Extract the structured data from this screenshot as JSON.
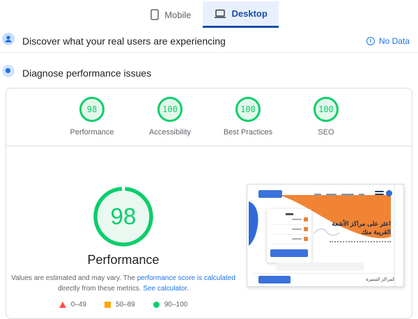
{
  "tabs": {
    "mobile": {
      "label": "Mobile"
    },
    "desktop": {
      "label": "Desktop"
    }
  },
  "field": {
    "title": "Discover what your real users are experiencing",
    "status": "No Data"
  },
  "lab": {
    "title": "Diagnose performance issues"
  },
  "categories": [
    {
      "score": "98",
      "label": "Performance"
    },
    {
      "score": "100",
      "label": "Accessibility"
    },
    {
      "score": "100",
      "label": "Best Practices"
    },
    {
      "score": "100",
      "label": "SEO"
    }
  ],
  "gauge": {
    "score": "98",
    "label": "Performance",
    "percent": 98
  },
  "disclaimer": {
    "text_1": "Values are estimated and may vary. The ",
    "link_1": "performance score is calculated",
    "text_2": " directly from these metrics. ",
    "link_2": "See calculator."
  },
  "legend": {
    "fail": "0–49",
    "average": "50–89",
    "pass": "90–100"
  },
  "thumbnail": {
    "heading": "اعثر على مراكز الأشعة القريبة منك",
    "footer_label": "المراكز المميزة"
  },
  "colors": {
    "pass": "#0cce6b",
    "average": "#ffa400",
    "fail": "#ff4e42",
    "link": "#1a73e8"
  }
}
